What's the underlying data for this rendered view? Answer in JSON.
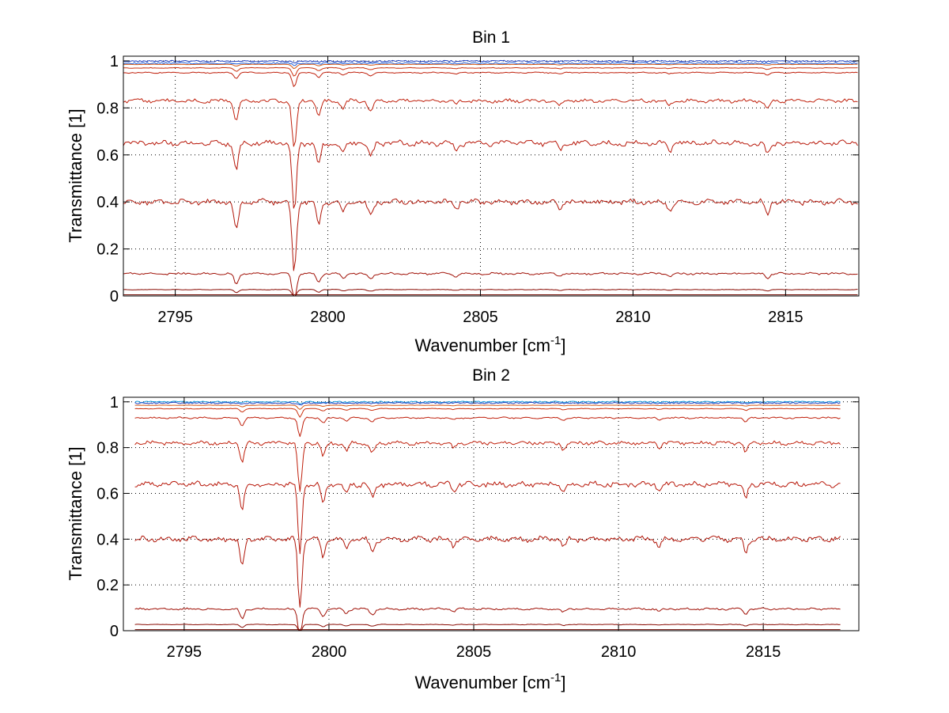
{
  "chart_data": [
    {
      "type": "line",
      "title": "Bin 1",
      "xlabel": "Wavenumber [cm",
      "xlabel_sup": "-1",
      "xlabel_end": "]",
      "ylabel": "Transmittance [1]",
      "xlim": [
        2793.3,
        2817.4
      ],
      "ylim": [
        0,
        1.02
      ],
      "x_range": [
        2793.3,
        2817.4
      ],
      "xticks": [
        2795,
        2800,
        2805,
        2810,
        2815
      ],
      "xtick_labels": [
        "2795",
        "2800",
        "2805",
        "2810",
        "2815"
      ],
      "yticks": [
        0,
        0.2,
        0.4,
        0.6,
        0.8,
        1
      ],
      "ytick_labels": [
        "0",
        "0.2",
        "0.4",
        "0.6",
        "0.8",
        "1"
      ],
      "grid": true,
      "series": [
        {
          "baseline": 0.999,
          "color": "#1f3fbf",
          "width": 2.5
        },
        {
          "baseline": 0.99,
          "color": "#1f5fd6",
          "width": 1.5
        },
        {
          "baseline": 0.985,
          "color": "#d45a1a",
          "width": 1
        },
        {
          "baseline": 0.97,
          "color": "#cc3311",
          "width": 1
        },
        {
          "baseline": 0.95,
          "color": "#c0200c",
          "width": 1
        },
        {
          "baseline": 0.83,
          "color": "#c0200c",
          "width": 1
        },
        {
          "baseline": 0.65,
          "color": "#b8180a",
          "width": 1
        },
        {
          "baseline": 0.4,
          "color": "#b01508",
          "width": 1
        },
        {
          "baseline": 0.095,
          "color": "#a01006",
          "width": 1
        },
        {
          "baseline": 0.027,
          "color": "#8a0c04",
          "width": 1
        },
        {
          "baseline": 0.005,
          "color": "#700a02",
          "width": 1.5
        },
        {
          "baseline": 0.0,
          "color": "#500500",
          "width": 1.5
        }
      ],
      "absorption_lines": [
        {
          "x": 2797.0,
          "depth": 0.12,
          "width": 0.1
        },
        {
          "x": 2798.9,
          "depth": 0.3,
          "width": 0.1
        },
        {
          "x": 2799.7,
          "depth": 0.1,
          "width": 0.1
        },
        {
          "x": 2800.5,
          "depth": 0.05,
          "width": 0.1
        },
        {
          "x": 2801.4,
          "depth": 0.06,
          "width": 0.12
        },
        {
          "x": 2804.2,
          "depth": 0.03,
          "width": 0.1
        },
        {
          "x": 2807.6,
          "depth": 0.03,
          "width": 0.1
        },
        {
          "x": 2811.2,
          "depth": 0.03,
          "width": 0.1
        },
        {
          "x": 2814.4,
          "depth": 0.05,
          "width": 0.1
        }
      ]
    },
    {
      "type": "line",
      "title": "Bin 2",
      "xlabel": "Wavenumber [cm",
      "xlabel_sup": "-1",
      "xlabel_end": "]",
      "ylabel": "Transmittance [1]",
      "xlim": [
        2792.9,
        2818.3
      ],
      "ylim": [
        0,
        1.02
      ],
      "x_range": [
        2793.3,
        2817.7
      ],
      "xticks": [
        2795,
        2800,
        2805,
        2810,
        2815
      ],
      "xtick_labels": [
        "2795",
        "2800",
        "2805",
        "2810",
        "2815"
      ],
      "yticks": [
        0,
        0.2,
        0.4,
        0.6,
        0.8,
        1
      ],
      "ytick_labels": [
        "0",
        "0.2",
        "0.4",
        "0.6",
        "0.8",
        "1"
      ],
      "grid": true,
      "series": [
        {
          "baseline": 1.0,
          "color": "#1aa0e0",
          "width": 3
        },
        {
          "baseline": 0.995,
          "color": "#1f3fbf",
          "width": 2.5
        },
        {
          "baseline": 0.985,
          "color": "#d45a1a",
          "width": 1
        },
        {
          "baseline": 0.97,
          "color": "#cc3311",
          "width": 1
        },
        {
          "baseline": 0.93,
          "color": "#c0200c",
          "width": 1
        },
        {
          "baseline": 0.82,
          "color": "#c0200c",
          "width": 1
        },
        {
          "baseline": 0.64,
          "color": "#b8180a",
          "width": 1
        },
        {
          "baseline": 0.4,
          "color": "#b01508",
          "width": 1
        },
        {
          "baseline": 0.095,
          "color": "#a01006",
          "width": 1
        },
        {
          "baseline": 0.027,
          "color": "#8a0c04",
          "width": 1
        },
        {
          "baseline": 0.005,
          "color": "#700a02",
          "width": 1.5
        },
        {
          "baseline": 0.0,
          "color": "#500500",
          "width": 1.5
        }
      ],
      "absorption_lines": [
        {
          "x": 2797.0,
          "depth": 0.12,
          "width": 0.1
        },
        {
          "x": 2799.0,
          "depth": 0.3,
          "width": 0.1
        },
        {
          "x": 2799.8,
          "depth": 0.08,
          "width": 0.1
        },
        {
          "x": 2800.6,
          "depth": 0.05,
          "width": 0.1
        },
        {
          "x": 2801.5,
          "depth": 0.06,
          "width": 0.12
        },
        {
          "x": 2804.3,
          "depth": 0.03,
          "width": 0.1
        },
        {
          "x": 2808.1,
          "depth": 0.04,
          "width": 0.1
        },
        {
          "x": 2811.4,
          "depth": 0.03,
          "width": 0.1
        },
        {
          "x": 2814.4,
          "depth": 0.06,
          "width": 0.1
        }
      ]
    }
  ]
}
